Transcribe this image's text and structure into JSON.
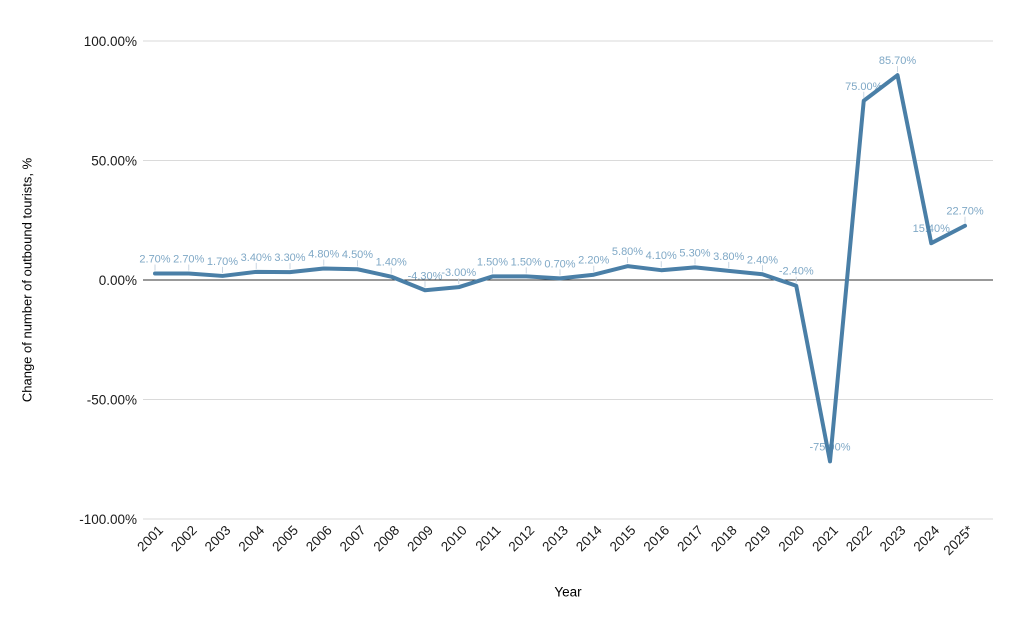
{
  "chart_data": {
    "type": "line",
    "title": "",
    "xlabel": "Year",
    "ylabel": "Change of number of outbound tourists, %",
    "categories": [
      "2001",
      "2002",
      "2003",
      "2004",
      "2005",
      "2006",
      "2007",
      "2008",
      "2009",
      "2010",
      "2011",
      "2012",
      "2013",
      "2014",
      "2015",
      "2016",
      "2017",
      "2018",
      "2019",
      "2020",
      "2021",
      "2022",
      "2023",
      "2024",
      "2025*"
    ],
    "values": [
      2.7,
      2.7,
      1.7,
      3.4,
      3.3,
      4.8,
      4.5,
      1.4,
      -4.3,
      -3.0,
      1.5,
      1.5,
      0.7,
      2.2,
      5.8,
      4.1,
      5.3,
      3.8,
      2.4,
      -2.4,
      -75.9,
      75.0,
      85.7,
      15.4,
      22.7
    ],
    "labels": [
      "2.70%",
      "2.70%",
      "1.70%",
      "3.40%",
      "3.30%",
      "4.80%",
      "4.50%",
      "1.40%",
      "-4.30%",
      "-3.00%",
      "1.50%",
      "1.50%",
      "0.70%",
      "2.20%",
      "5.80%",
      "4.10%",
      "5.30%",
      "3.80%",
      "2.40%",
      "-2.40%",
      "-75.90%",
      "75.00%",
      "85.70%",
      "15.40%",
      "22.70%"
    ],
    "y_ticks": [
      "100.00%",
      "50.00%",
      "0.00%",
      "-50.00%",
      "-100.00%"
    ],
    "y_tick_values": [
      100,
      50,
      0,
      -50,
      -100
    ],
    "ylim": [
      -100,
      100
    ],
    "grid": true,
    "legend": "none",
    "series_color": "#4A7FA7",
    "annotation_color": "#7FA8C6",
    "stem_color": "#C9D6E2",
    "gridline_color": "#DADADA",
    "axis_line_color": "#333333",
    "tick_label_color": "#1A1A1A"
  }
}
